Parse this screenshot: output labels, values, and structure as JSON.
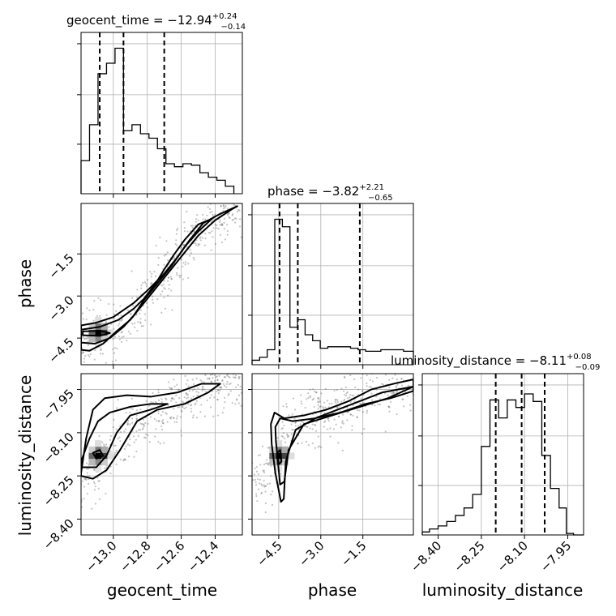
{
  "chart_data": {
    "type": "corner",
    "parameters": [
      "geocent_time",
      "phase",
      "luminosity_distance"
    ],
    "ranges": {
      "geocent_time": [
        -13.19,
        -12.24
      ],
      "phase": [
        -5.45,
        0.3
      ],
      "luminosity_distance": [
        -8.455,
        -7.895
      ]
    },
    "grid": true,
    "diagonal": [
      {
        "param": "geocent_time",
        "title_main": "geocent_time = −12.94",
        "title_sup": "+0.24",
        "title_sub": "−0.14",
        "quantiles": [
          -13.08,
          -12.94,
          -12.7
        ],
        "bin_edges": [
          -13.19,
          -13.14,
          -13.09,
          -13.04,
          -12.99,
          -12.94,
          -12.89,
          -12.84,
          -12.79,
          -12.74,
          -12.69,
          -12.64,
          -12.59,
          -12.54,
          -12.49,
          -12.44,
          -12.39,
          -12.34,
          -12.29
        ],
        "counts": [
          0.22,
          0.46,
          0.8,
          0.87,
          0.97,
          0.42,
          0.46,
          0.4,
          0.37,
          0.3,
          0.2,
          0.18,
          0.2,
          0.19,
          0.14,
          0.11,
          0.09,
          0.05
        ],
        "ytick_values": [
          0.33,
          0.66,
          1.0
        ]
      },
      {
        "param": "phase",
        "title_main": "phase = −3.82",
        "title_sup": "+2.21",
        "title_sub": "−0.65",
        "quantiles": [
          -4.47,
          -3.82,
          -1.61
        ],
        "bin_edges": [
          -5.45,
          -5.18,
          -4.91,
          -4.64,
          -4.37,
          -4.1,
          -3.83,
          -3.56,
          -3.29,
          -3.02,
          -2.75,
          -2.48,
          -2.21,
          -1.94,
          -1.67,
          -1.4,
          -1.13,
          -0.86,
          -0.59,
          -0.32,
          -0.05,
          0.3
        ],
        "counts": [
          0.03,
          0.05,
          0.1,
          0.97,
          0.92,
          0.25,
          0.3,
          0.2,
          0.16,
          0.11,
          0.12,
          0.12,
          0.12,
          0.11,
          0.1,
          0.09,
          0.09,
          0.1,
          0.1,
          0.1,
          0.09
        ],
        "ytick_values": [
          0.33,
          0.66,
          1.0
        ]
      },
      {
        "param": "luminosity_distance",
        "title_main": "luminosity_distance = −8.11",
        "title_sup": "+0.08",
        "title_sub": "−0.09",
        "quantiles": [
          -8.2,
          -8.11,
          -8.03
        ],
        "bin_edges": [
          -8.455,
          -8.43,
          -8.4,
          -8.37,
          -8.34,
          -8.31,
          -8.28,
          -8.25,
          -8.22,
          -8.19,
          -8.16,
          -8.13,
          -8.1,
          -8.07,
          -8.04,
          -8.01,
          -7.98,
          -7.955,
          -7.93,
          -7.895
        ],
        "counts": [
          0.02,
          0.04,
          0.06,
          0.09,
          0.13,
          0.18,
          0.27,
          0.59,
          0.9,
          0.78,
          0.9,
          0.85,
          0.94,
          0.89,
          0.53,
          0.31,
          0.18,
          0.01,
          0.0
        ],
        "ytick_values": [
          0.33,
          0.66,
          1.0
        ]
      }
    ],
    "ticks": {
      "geocent_time": {
        "values": [
          -13.0,
          -12.8,
          -12.6,
          -12.4
        ],
        "labels": [
          "−13.0",
          "−12.8",
          "−12.6",
          "−12.4"
        ]
      },
      "phase": {
        "values": [
          -4.5,
          -3.0,
          -1.5
        ],
        "labels": [
          "−4.5",
          "−3.0",
          "−1.5"
        ]
      },
      "luminosity_distance": {
        "values": [
          -8.4,
          -8.25,
          -8.1,
          -7.95
        ],
        "labels": [
          "−8.40",
          "−8.25",
          "−8.10",
          "−7.95"
        ]
      }
    },
    "axis_labels": {
      "geocent_time": "geocent_time",
      "phase": "phase",
      "luminosity_distance": "luminosity_distance"
    },
    "pairs": [
      {
        "x": "geocent_time",
        "y": "phase",
        "density_peak": [
          -13.09,
          -4.3
        ],
        "contours": [
          [
            [
              -13.19,
              -4.05
            ],
            [
              -13.1,
              -3.95
            ],
            [
              -13.0,
              -3.75
            ],
            [
              -12.88,
              -3.25
            ],
            [
              -12.79,
              -2.75
            ],
            [
              -12.7,
              -2.2
            ],
            [
              -12.62,
              -1.6
            ],
            [
              -12.55,
              -1.0
            ],
            [
              -12.47,
              -0.4
            ],
            [
              -12.38,
              -0.1
            ],
            [
              -12.27,
              0.2
            ],
            [
              -12.3,
              0.1
            ],
            [
              -12.4,
              -0.3
            ],
            [
              -12.5,
              -0.85
            ],
            [
              -12.58,
              -1.45
            ],
            [
              -12.66,
              -2.05
            ],
            [
              -12.74,
              -2.65
            ],
            [
              -12.82,
              -3.25
            ],
            [
              -12.9,
              -3.85
            ],
            [
              -12.98,
              -4.25
            ],
            [
              -13.06,
              -4.7
            ],
            [
              -13.14,
              -4.95
            ],
            [
              -13.19,
              -4.92
            ]
          ],
          [
            [
              -13.19,
              -4.2
            ],
            [
              -13.08,
              -4.1
            ],
            [
              -12.97,
              -3.85
            ],
            [
              -12.88,
              -3.45
            ],
            [
              -12.82,
              -3.1
            ],
            [
              -12.75,
              -2.55
            ],
            [
              -12.7,
              -2.05
            ],
            [
              -12.64,
              -1.5
            ],
            [
              -12.58,
              -1.0
            ],
            [
              -12.5,
              -0.45
            ],
            [
              -12.42,
              -0.25
            ],
            [
              -12.5,
              -0.7
            ],
            [
              -12.58,
              -1.25
            ],
            [
              -12.66,
              -1.95
            ],
            [
              -12.74,
              -2.55
            ],
            [
              -12.82,
              -3.15
            ],
            [
              -12.88,
              -3.7
            ],
            [
              -12.94,
              -4.1
            ],
            [
              -13.02,
              -4.5
            ],
            [
              -13.11,
              -4.7
            ],
            [
              -13.19,
              -4.66
            ]
          ],
          [
            [
              -13.18,
              -4.26
            ],
            [
              -13.08,
              -4.24
            ],
            [
              -13.02,
              -4.32
            ],
            [
              -13.08,
              -4.42
            ],
            [
              -13.18,
              -4.4
            ]
          ]
        ],
        "scatter_trend": [
          [
            -13.19,
            -4.4
          ],
          [
            -12.9,
            -3.9
          ],
          [
            -12.75,
            -2.6
          ],
          [
            -12.6,
            -1.5
          ],
          [
            -12.45,
            -0.4
          ],
          [
            -12.3,
            0.1
          ]
        ]
      },
      {
        "x": "geocent_time",
        "y": "luminosity_distance",
        "density_peak": [
          -13.09,
          -8.18
        ],
        "contours": [
          [
            [
              -13.19,
              -8.24
            ],
            [
              -13.16,
              -8.12
            ],
            [
              -13.12,
              -8.02
            ],
            [
              -13.05,
              -7.98
            ],
            [
              -12.92,
              -7.97
            ],
            [
              -12.78,
              -7.975
            ],
            [
              -12.62,
              -7.96
            ],
            [
              -12.48,
              -7.93
            ],
            [
              -12.37,
              -7.93
            ],
            [
              -12.44,
              -7.96
            ],
            [
              -12.58,
              -8.0
            ],
            [
              -12.74,
              -8.02
            ],
            [
              -12.86,
              -8.06
            ],
            [
              -12.96,
              -8.16
            ],
            [
              -13.04,
              -8.23
            ],
            [
              -13.12,
              -8.26
            ],
            [
              -13.19,
              -8.25
            ]
          ],
          [
            [
              -13.19,
              -8.2
            ],
            [
              -13.14,
              -8.12
            ],
            [
              -13.09,
              -8.06
            ],
            [
              -13.02,
              -8.03
            ],
            [
              -12.9,
              -8.01
            ],
            [
              -12.78,
              -8.0
            ],
            [
              -12.68,
              -8.0
            ],
            [
              -12.78,
              -8.02
            ],
            [
              -12.9,
              -8.04
            ],
            [
              -12.98,
              -8.1
            ],
            [
              -13.04,
              -8.18
            ],
            [
              -13.1,
              -8.22
            ],
            [
              -13.19,
              -8.22
            ]
          ],
          [
            [
              -13.12,
              -8.17
            ],
            [
              -13.08,
              -8.16
            ],
            [
              -13.06,
              -8.18
            ],
            [
              -13.1,
              -8.19
            ]
          ]
        ],
        "scatter_trend": [
          [
            -13.19,
            -8.28
          ],
          [
            -13.0,
            -8.16
          ],
          [
            -12.8,
            -8.05
          ],
          [
            -12.6,
            -7.99
          ],
          [
            -12.4,
            -7.94
          ],
          [
            -12.3,
            -7.92
          ]
        ]
      },
      {
        "x": "phase",
        "y": "luminosity_distance",
        "density_peak": [
          -4.5,
          -8.18
        ],
        "contours": [
          [
            [
              -4.75,
              -8.14
            ],
            [
              -4.78,
              -8.07
            ],
            [
              -4.65,
              -8.03
            ],
            [
              -4.3,
              -8.05
            ],
            [
              -3.6,
              -8.04
            ],
            [
              -2.8,
              -8.02
            ],
            [
              -2.0,
              -7.99
            ],
            [
              -1.2,
              -7.95
            ],
            [
              -0.4,
              -7.93
            ],
            [
              0.3,
              -7.915
            ],
            [
              0.3,
              -7.955
            ],
            [
              -0.5,
              -7.98
            ],
            [
              -1.4,
              -8.0
            ],
            [
              -2.3,
              -8.03
            ],
            [
              -3.2,
              -8.05
            ],
            [
              -3.9,
              -8.09
            ],
            [
              -4.25,
              -8.2
            ],
            [
              -4.32,
              -8.33
            ],
            [
              -4.42,
              -8.34
            ],
            [
              -4.62,
              -8.24
            ],
            [
              -4.75,
              -8.14
            ]
          ],
          [
            [
              -4.6,
              -8.13
            ],
            [
              -4.62,
              -8.08
            ],
            [
              -4.45,
              -8.05
            ],
            [
              -4.0,
              -8.06
            ],
            [
              -3.2,
              -8.05
            ],
            [
              -2.4,
              -8.02
            ],
            [
              -1.6,
              -7.99
            ],
            [
              -0.8,
              -7.96
            ],
            [
              0.3,
              -7.94
            ],
            [
              -0.6,
              -7.98
            ],
            [
              -1.6,
              -8.01
            ],
            [
              -2.6,
              -8.04
            ],
            [
              -3.6,
              -8.07
            ],
            [
              -4.15,
              -8.16
            ],
            [
              -4.3,
              -8.27
            ],
            [
              -4.45,
              -8.28
            ],
            [
              -4.6,
              -8.13
            ]
          ],
          [
            [
              -4.55,
              -8.17
            ],
            [
              -4.45,
              -8.16
            ],
            [
              -4.4,
              -8.2
            ],
            [
              -4.5,
              -8.21
            ]
          ]
        ],
        "scatter_trend": [
          [
            -4.6,
            -8.25
          ],
          [
            -4.4,
            -8.12
          ],
          [
            -3.5,
            -8.05
          ],
          [
            -2.0,
            -8.0
          ],
          [
            -0.5,
            -7.95
          ],
          [
            0.3,
            -7.92
          ]
        ]
      }
    ]
  }
}
